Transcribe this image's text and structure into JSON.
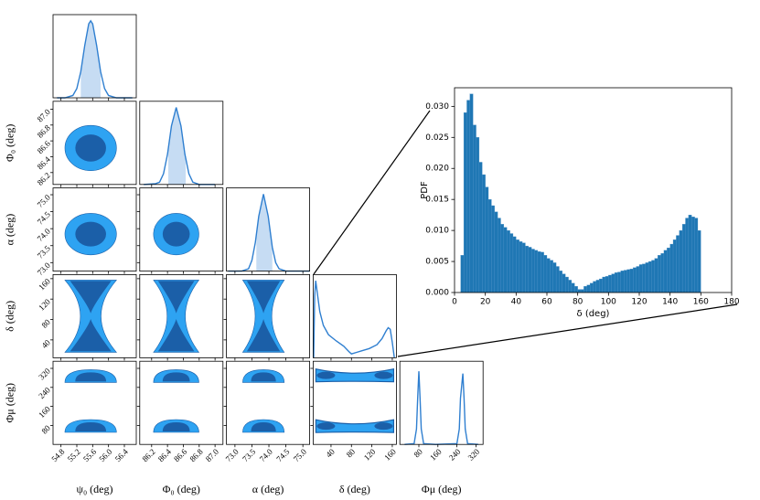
{
  "chart_data": [
    {
      "type": "corner",
      "color": "#2f7fd0",
      "shade_color": "#c6dcf3",
      "contour_light": "#2ea3f2",
      "contour_dark": "#1b5fa8",
      "parameters": [
        {
          "label": "ψ₀ (deg)",
          "lim": [
            54.6,
            56.7
          ],
          "ticks": [
            54.8,
            55.2,
            55.6,
            {
              "value": 56,
              "label": "56.0"
            },
            56.4
          ],
          "marginal": {
            "x": [
              54.7,
              54.9,
              55.1,
              55.2,
              55.3,
              55.4,
              55.5,
              55.55,
              55.6,
              55.7,
              55.8,
              55.9,
              56.0,
              56.2,
              56.6
            ],
            "values": [
              0,
              0,
              0.03,
              0.12,
              0.34,
              0.68,
              0.96,
              1,
              0.96,
              0.68,
              0.34,
              0.12,
              0.03,
              0,
              0
            ]
          },
          "interval": [
            55.3,
            55.8
          ]
        },
        {
          "label": "Φ₀ (deg)",
          "lim": [
            86.05,
            87.1
          ],
          "ticks": [
            86.2,
            86.4,
            86.6,
            86.8,
            {
              "value": 87,
              "label": "87.0"
            }
          ],
          "marginal": {
            "x": [
              86.1,
              86.25,
              86.3,
              86.35,
              86.4,
              86.45,
              86.51,
              86.57,
              86.62,
              86.67,
              86.72,
              86.8,
              87.0
            ],
            "values": [
              0,
              0.01,
              0.03,
              0.14,
              0.39,
              0.76,
              1,
              0.76,
              0.39,
              0.14,
              0.03,
              0,
              0
            ]
          },
          "interval": [
            86.41,
            86.63
          ]
        },
        {
          "label": "α (deg)",
          "lim": [
            72.75,
            75.2
          ],
          "ticks": [
            {
              "value": 73,
              "label": "73.0"
            },
            73.5,
            {
              "value": 74,
              "label": "74.0"
            },
            74.5,
            {
              "value": 75,
              "label": "75.0"
            }
          ],
          "marginal": {
            "x": [
              72.8,
              73.2,
              73.4,
              73.5,
              73.6,
              73.7,
              73.84,
              73.98,
              74.1,
              74.2,
              74.3,
              74.5,
              75.2
            ],
            "values": [
              0,
              0,
              0.03,
              0.14,
              0.37,
              0.71,
              1,
              0.71,
              0.31,
              0.11,
              0.03,
              0,
              0
            ]
          },
          "interval": [
            73.63,
            74.1
          ]
        },
        {
          "label": "δ (deg)",
          "lim": [
            5,
            168
          ],
          "ticks": [
            40,
            80,
            120,
            160
          ],
          "marginal": {
            "x": [
              6,
              8,
              10,
              13,
              18,
              25,
              35,
              50,
              65,
              75,
              80,
              90,
              100,
              115,
              130,
              140,
              148,
              152,
              156,
              160,
              164
            ],
            "values": [
              0,
              0.8,
              1,
              0.85,
              0.6,
              0.42,
              0.3,
              0.22,
              0.15,
              0.08,
              0.05,
              0.07,
              0.09,
              0.12,
              0.17,
              0.25,
              0.35,
              0.39,
              0.37,
              0.2,
              0
            ]
          }
        },
        {
          "label": "Φμ (deg)",
          "lim": [
            0,
            350
          ],
          "ticks": [
            80,
            160,
            240,
            320
          ],
          "marginal": {
            "x": [
              20,
              60,
              70,
              75,
              80,
              85,
              90,
              100,
              150,
              240,
              250,
              255,
              265,
              270,
              275,
              285,
              330
            ],
            "values": [
              0,
              0.01,
              0.2,
              0.6,
              0.95,
              0.6,
              0.2,
              0.01,
              0,
              0.01,
              0.2,
              0.6,
              0.92,
              0.6,
              0.2,
              0.01,
              0
            ]
          }
        }
      ]
    },
    {
      "type": "histogram",
      "color": "#1f77b4",
      "xlabel": "δ (deg)",
      "ylabel": "PDF",
      "bins": [
        4,
        6,
        8,
        10,
        12,
        14,
        16,
        18,
        20,
        22,
        24,
        26,
        28,
        30,
        32,
        34,
        36,
        38,
        40,
        42,
        44,
        46,
        48,
        50,
        52,
        54,
        56,
        58,
        60,
        62,
        64,
        66,
        68,
        70,
        72,
        74,
        76,
        78,
        80,
        82,
        84,
        86,
        88,
        90,
        92,
        94,
        96,
        98,
        100,
        102,
        104,
        106,
        108,
        110,
        112,
        114,
        116,
        118,
        120,
        122,
        124,
        126,
        128,
        130,
        132,
        134,
        136,
        138,
        140,
        142,
        144,
        146,
        148,
        150,
        152,
        154,
        156,
        158,
        160
      ],
      "values": [
        0.006,
        0.029,
        0.031,
        0.032,
        0.027,
        0.025,
        0.021,
        0.019,
        0.017,
        0.015,
        0.014,
        0.013,
        0.012,
        0.011,
        0.0105,
        0.01,
        0.0095,
        0.009,
        0.0085,
        0.0082,
        0.008,
        0.0075,
        0.0073,
        0.007,
        0.0068,
        0.0066,
        0.0065,
        0.006,
        0.0055,
        0.0052,
        0.0048,
        0.0042,
        0.0035,
        0.003,
        0.0025,
        0.002,
        0.0015,
        0.001,
        0.0005,
        0.0005,
        0.001,
        0.0012,
        0.0015,
        0.0018,
        0.002,
        0.0022,
        0.0025,
        0.0026,
        0.0028,
        0.003,
        0.0032,
        0.0033,
        0.0035,
        0.0036,
        0.0037,
        0.0038,
        0.004,
        0.0042,
        0.0045,
        0.0046,
        0.0048,
        0.005,
        0.0052,
        0.0055,
        0.006,
        0.0063,
        0.0068,
        0.0072,
        0.0078,
        0.0085,
        0.0092,
        0.01,
        0.011,
        0.012,
        0.0125,
        0.0122,
        0.012,
        0.01
      ],
      "xlim": [
        0,
        180
      ],
      "xticks": [
        0,
        20,
        40,
        60,
        80,
        100,
        120,
        140,
        160,
        180
      ],
      "ylim": [
        0,
        0.033
      ],
      "yticks": [
        {
          "value": 0,
          "label": "0.000"
        },
        {
          "value": 0.005,
          "label": "0.005"
        },
        {
          "value": 0.01,
          "label": "0.010"
        },
        {
          "value": 0.015,
          "label": "0.015"
        },
        {
          "value": 0.02,
          "label": "0.020"
        },
        {
          "value": 0.025,
          "label": "0.025"
        },
        {
          "value": 0.03,
          "label": "0.030"
        }
      ]
    }
  ]
}
